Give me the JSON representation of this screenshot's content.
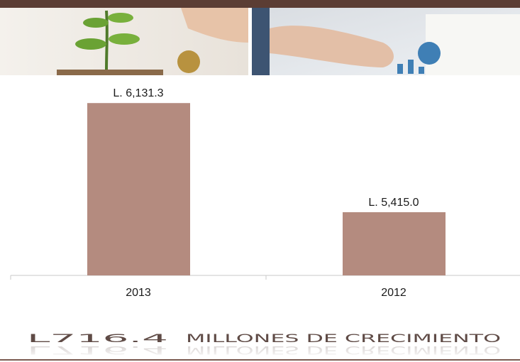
{
  "chart_data": {
    "type": "bar",
    "categories": [
      "2013",
      "2012"
    ],
    "values": [
      6131.3,
      5415.0
    ],
    "value_labels": [
      "L. 6,131.3",
      "L. 5,415.0"
    ],
    "color": "#b48b7f",
    "ylim": [
      5000,
      6300
    ],
    "headline": "L716.4",
    "subheadline": "MILLONES DE CRECIMIENTO"
  }
}
